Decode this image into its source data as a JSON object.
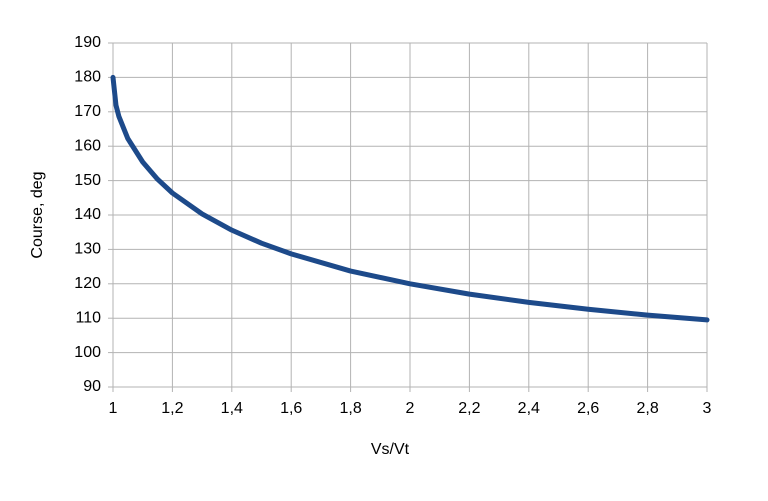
{
  "chart_data": {
    "type": "line",
    "x_label": "Vs/Vt",
    "y_label": "Course, deg",
    "x": [
      1,
      1.01,
      1.02,
      1.05,
      1.1,
      1.15,
      1.2,
      1.3,
      1.4,
      1.5,
      1.6,
      1.8,
      2,
      2.2,
      2.4,
      2.6,
      2.8,
      3
    ],
    "series": [
      {
        "name": "Course",
        "color": "#1d4a8a",
        "values": [
          180,
          171.9,
          168.6,
          162.2,
          155.4,
          150.4,
          146.4,
          140.3,
          135.6,
          131.8,
          128.7,
          123.7,
          120,
          117,
          114.6,
          112.6,
          110.9,
          109.5
        ]
      }
    ],
    "xlim": [
      1,
      3
    ],
    "xticks": [
      1,
      {
        "value": 1.2,
        "label": "1,2"
      },
      {
        "value": 1.4,
        "label": "1,4"
      },
      {
        "value": 1.6,
        "label": "1,6"
      },
      {
        "value": 1.8,
        "label": "1,8"
      },
      2,
      {
        "value": 2.2,
        "label": "2,2"
      },
      {
        "value": 2.4,
        "label": "2,4"
      },
      {
        "value": 2.6,
        "label": "2,6"
      },
      {
        "value": 2.8,
        "label": "2,8"
      },
      3
    ],
    "ylim": [
      90,
      190
    ],
    "yticks": [
      90,
      100,
      110,
      120,
      130,
      140,
      150,
      160,
      170,
      180,
      190
    ],
    "grid": true
  }
}
